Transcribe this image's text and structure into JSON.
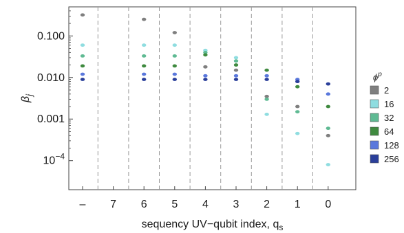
{
  "chart_data": {
    "type": "scatter",
    "title": "",
    "xlabel": "sequency UV−qubit index,  q",
    "xlabel_subscript": "s",
    "ylabel": "β",
    "ylabel_subscript": "j",
    "y_scale": "log",
    "ylim": [
      2e-05,
      0.5
    ],
    "y_ticks": [
      {
        "value": 0.1,
        "label": "0.100"
      },
      {
        "value": 0.01,
        "label": "0.010"
      },
      {
        "value": 0.001,
        "label": "0.001"
      },
      {
        "value": 0.0001,
        "label": "10",
        "exp": "−4"
      }
    ],
    "categories": [
      "–",
      "7",
      "6",
      "5",
      "4",
      "3",
      "2",
      "1",
      "0"
    ],
    "legend_title": "ϕ",
    "legend_title_sup": "p",
    "legend_position": "right",
    "grid": "vertical dashed separators between categories",
    "series": [
      {
        "name": "2",
        "color": "#7f7f7f",
        "values": [
          0.32,
          null,
          0.25,
          0.12,
          0.018,
          0.015,
          0.0035,
          0.002,
          0.0004
        ]
      },
      {
        "name": "16",
        "color": "#8fdde0",
        "values": [
          0.06,
          null,
          0.06,
          0.06,
          0.045,
          0.03,
          0.0013,
          0.00045,
          8e-05
        ]
      },
      {
        "name": "32",
        "color": "#5fba93",
        "values": [
          0.033,
          null,
          0.033,
          0.033,
          0.04,
          0.025,
          0.003,
          0.0015,
          0.0006
        ]
      },
      {
        "name": "64",
        "color": "#3f8a3f",
        "values": [
          0.019,
          null,
          0.019,
          0.019,
          0.035,
          0.02,
          0.015,
          0.006,
          0.002
        ]
      },
      {
        "name": "128",
        "color": "#5a78dc",
        "values": [
          0.012,
          null,
          0.012,
          0.012,
          0.011,
          0.011,
          0.011,
          0.009,
          0.004
        ]
      },
      {
        "name": "256",
        "color": "#2a3f9a",
        "values": [
          0.009,
          null,
          0.009,
          0.009,
          0.009,
          0.009,
          0.009,
          0.008,
          0.007
        ]
      }
    ]
  }
}
